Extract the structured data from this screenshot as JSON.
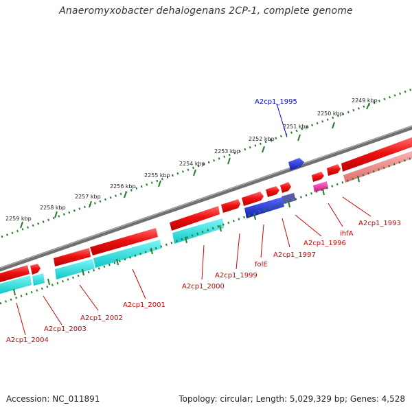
{
  "title": "Anaeromyxobacter dehalogenans 2CP-1, complete genome",
  "footer": {
    "accession": "Accession: NC_011891",
    "summary": "Topology: circular; Length: 5,029,329 bp; Genes: 4,528"
  },
  "kbp_labels": [
    "2249 kbp",
    "2250 kbp",
    "2251 kbp",
    "2252 kbp",
    "2253 kbp",
    "2254 kbp",
    "2255 kbp",
    "2256 kbp",
    "2257 kbp",
    "2258 kbp",
    "2259 kbp"
  ],
  "gene_labels": [
    "A2cp1_1995",
    "A2cp1_1993",
    "ihfA",
    "A2cp1_1996",
    "A2cp1_1997",
    "folE",
    "A2cp1_1999",
    "A2cp1_2000",
    "A2cp1_2001",
    "A2cp1_2002",
    "A2cp1_2003",
    "A2cp1_2004"
  ],
  "colors": {
    "backbone": "#888888",
    "forward_cds": "#ee1111",
    "forward_light": "#f08080",
    "reverse_cds": "#2233cc",
    "cyan_track": "#22dddd",
    "pink": "#ee22aa",
    "tick": "#2a7a2a",
    "label_red": "#cc0000",
    "label_blue": "#0000cc"
  }
}
